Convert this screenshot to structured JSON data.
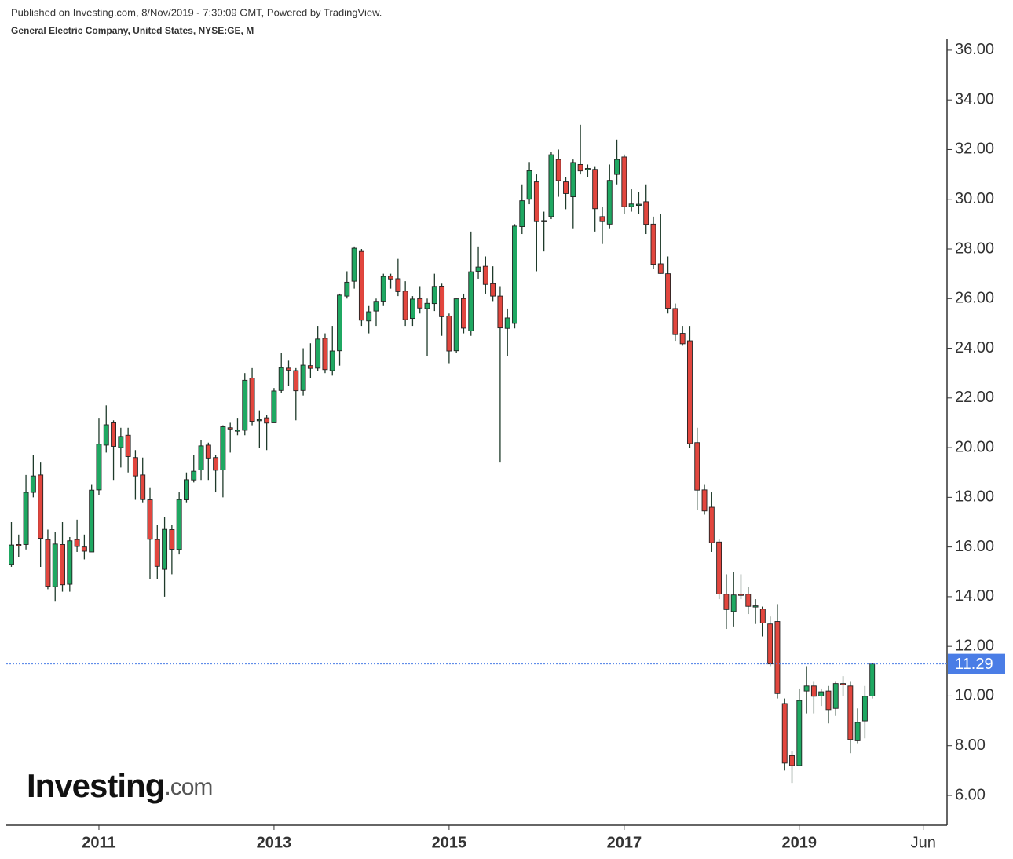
{
  "chart_data": {
    "type": "candlestick",
    "header": "Published on Investing.com, 8/Nov/2019 - 7:30:09 GMT, Powered by TradingView.",
    "title": "General Electric Company, United States, NYSE:GE, M",
    "watermark": "Investing",
    "watermark_suffix": ".com",
    "up_color": "#1fa862",
    "down_color": "#e2463e",
    "last_line_color": "#4a7de6",
    "x": [
      "2010-01",
      "2010-02",
      "2010-03",
      "2010-04",
      "2010-05",
      "2010-06",
      "2010-07",
      "2010-08",
      "2010-09",
      "2010-10",
      "2010-11",
      "2010-12",
      "2011-01",
      "2011-02",
      "2011-03",
      "2011-04",
      "2011-05",
      "2011-06",
      "2011-07",
      "2011-08",
      "2011-09",
      "2011-10",
      "2011-11",
      "2011-12",
      "2012-01",
      "2012-02",
      "2012-03",
      "2012-04",
      "2012-05",
      "2012-06",
      "2012-07",
      "2012-08",
      "2012-09",
      "2012-10",
      "2012-11",
      "2012-12",
      "2013-01",
      "2013-02",
      "2013-03",
      "2013-04",
      "2013-05",
      "2013-06",
      "2013-07",
      "2013-08",
      "2013-09",
      "2013-10",
      "2013-11",
      "2013-12",
      "2014-01",
      "2014-02",
      "2014-03",
      "2014-04",
      "2014-05",
      "2014-06",
      "2014-07",
      "2014-08",
      "2014-09",
      "2014-10",
      "2014-11",
      "2014-12",
      "2015-01",
      "2015-02",
      "2015-03",
      "2015-04",
      "2015-05",
      "2015-06",
      "2015-07",
      "2015-08",
      "2015-09",
      "2015-10",
      "2015-11",
      "2015-12",
      "2016-01",
      "2016-02",
      "2016-03",
      "2016-04",
      "2016-05",
      "2016-06",
      "2016-07",
      "2016-08",
      "2016-09",
      "2016-10",
      "2016-11",
      "2016-12",
      "2017-01",
      "2017-02",
      "2017-03",
      "2017-04",
      "2017-05",
      "2017-06",
      "2017-07",
      "2017-08",
      "2017-09",
      "2017-10",
      "2017-11",
      "2017-12",
      "2018-01",
      "2018-02",
      "2018-03",
      "2018-04",
      "2018-05",
      "2018-06",
      "2018-07",
      "2018-08",
      "2018-09",
      "2018-10",
      "2018-11",
      "2018-12",
      "2019-01",
      "2019-02",
      "2019-03",
      "2019-04",
      "2019-05",
      "2019-06",
      "2019-07",
      "2019-08",
      "2019-09",
      "2019-10",
      "2019-11"
    ],
    "open": [
      15.3,
      16.1,
      16.1,
      18.2,
      18.9,
      16.3,
      14.4,
      16.1,
      14.5,
      16.3,
      16.0,
      15.8,
      18.3,
      20.1,
      21.0,
      20.0,
      20.5,
      19.6,
      18.9,
      17.9,
      16.3,
      15.1,
      16.7,
      15.9,
      17.9,
      18.7,
      19.1,
      20.1,
      19.6,
      19.1,
      20.8,
      20.7,
      20.7,
      22.8,
      21.1,
      21.2,
      21.0,
      22.3,
      23.2,
      23.1,
      22.3,
      23.3,
      23.2,
      24.4,
      23.1,
      23.9,
      26.1,
      26.7,
      27.9,
      25.1,
      25.5,
      25.9,
      26.9,
      26.8,
      26.3,
      25.2,
      26.0,
      25.6,
      25.8,
      26.5,
      25.3,
      23.9,
      26.0,
      24.7,
      27.1,
      27.3,
      26.6,
      26.1,
      24.8,
      25.0,
      28.9,
      30.0,
      30.7,
      29.1,
      29.3,
      31.6,
      30.7,
      30.1,
      31.4,
      31.2,
      31.2,
      29.3,
      29.0,
      31.0,
      31.7,
      29.7,
      29.8,
      29.9,
      29.0,
      27.4,
      27.0,
      25.6,
      24.6,
      24.3,
      20.2,
      18.3,
      17.6,
      16.2,
      14.1,
      13.4,
      14.1,
      14.1,
      13.6,
      13.5,
      12.9,
      13.0,
      9.7,
      7.6,
      7.2,
      10.2,
      10.4,
      10.0,
      10.2,
      9.5,
      10.5,
      10.4,
      8.2,
      9.0,
      10.0
    ],
    "high": [
      17.0,
      16.5,
      18.9,
      19.7,
      19.4,
      16.7,
      16.6,
      17.0,
      16.4,
      17.1,
      16.5,
      18.5,
      21.2,
      21.7,
      21.1,
      20.8,
      20.8,
      19.9,
      19.6,
      18.4,
      16.9,
      17.2,
      16.9,
      18.2,
      19.0,
      19.7,
      20.3,
      20.2,
      19.7,
      20.9,
      21.0,
      21.2,
      23.0,
      23.2,
      21.5,
      21.3,
      22.4,
      23.8,
      23.5,
      23.2,
      24.0,
      24.2,
      24.9,
      24.6,
      24.9,
      26.2,
      27.1,
      28.1,
      28.0,
      25.7,
      26.0,
      27.0,
      27.0,
      27.6,
      26.7,
      26.1,
      26.5,
      26.0,
      27.0,
      26.6,
      25.4,
      26.0,
      26.2,
      28.7,
      28.1,
      27.7,
      27.3,
      26.5,
      25.6,
      29.0,
      30.6,
      31.5,
      31.0,
      29.5,
      31.9,
      32.0,
      30.9,
      31.6,
      33.0,
      31.4,
      31.3,
      29.7,
      31.4,
      32.4,
      31.8,
      30.4,
      30.3,
      30.6,
      29.3,
      29.4,
      27.7,
      25.8,
      24.9,
      24.9,
      20.8,
      18.5,
      18.2,
      16.3,
      14.9,
      15.0,
      14.9,
      14.4,
      13.9,
      13.6,
      13.2,
      13.7,
      9.9,
      7.8,
      10.3,
      11.2,
      10.6,
      10.3,
      10.4,
      10.6,
      10.8,
      10.6,
      9.5,
      10.4,
      11.3
    ],
    "low": [
      15.2,
      15.6,
      15.9,
      18.0,
      15.2,
      14.3,
      13.8,
      14.2,
      14.2,
      15.8,
      15.5,
      15.8,
      18.1,
      19.8,
      18.7,
      19.2,
      19.0,
      17.9,
      17.8,
      14.7,
      14.7,
      14.0,
      14.9,
      15.7,
      17.8,
      18.6,
      18.7,
      18.7,
      18.2,
      18.0,
      19.8,
      20.5,
      20.5,
      20.9,
      20.0,
      19.9,
      21.0,
      22.2,
      22.5,
      21.1,
      22.1,
      22.8,
      23.1,
      23.0,
      22.9,
      23.3,
      26.0,
      26.4,
      24.9,
      24.6,
      24.9,
      25.7,
      26.4,
      26.1,
      24.9,
      24.9,
      25.4,
      23.7,
      25.5,
      24.5,
      23.4,
      23.8,
      24.6,
      24.5,
      26.8,
      26.2,
      25.9,
      19.4,
      23.7,
      24.8,
      28.6,
      29.8,
      27.1,
      27.9,
      29.2,
      30.1,
      29.6,
      28.8,
      31.0,
      30.9,
      28.7,
      28.2,
      28.8,
      30.6,
      29.4,
      29.5,
      29.4,
      28.6,
      27.2,
      27.0,
      25.4,
      24.3,
      24.1,
      20.0,
      17.5,
      17.3,
      15.8,
      13.9,
      12.7,
      12.8,
      13.9,
      13.3,
      12.9,
      12.4,
      11.2,
      9.9,
      7.0,
      6.5,
      7.2,
      9.3,
      9.3,
      9.6,
      8.9,
      9.2,
      10.0,
      7.7,
      8.1,
      8.3,
      9.9
    ],
    "close": [
      16.08,
      16.06,
      18.2,
      18.86,
      16.35,
      14.42,
      16.12,
      14.48,
      16.25,
      16.02,
      15.83,
      18.29,
      20.14,
      20.92,
      20.05,
      20.45,
      19.64,
      18.86,
      17.91,
      16.31,
      15.22,
      16.71,
      15.91,
      17.91,
      18.71,
      19.05,
      20.07,
      19.58,
      19.09,
      20.84,
      20.75,
      20.71,
      22.71,
      21.06,
      21.13,
      20.99,
      22.28,
      23.22,
      23.12,
      22.29,
      23.32,
      23.19,
      24.37,
      23.14,
      23.89,
      26.14,
      26.66,
      28.03,
      25.13,
      25.47,
      25.89,
      26.89,
      26.79,
      26.28,
      25.15,
      25.98,
      25.62,
      25.81,
      26.49,
      25.27,
      23.89,
      25.99,
      24.81,
      27.08,
      27.27,
      26.57,
      26.1,
      24.82,
      25.22,
      28.92,
      29.94,
      31.15,
      29.1,
      29.14,
      31.79,
      30.75,
      30.23,
      31.48,
      31.14,
      31.24,
      29.62,
      29.1,
      30.76,
      31.6,
      29.7,
      29.81,
      29.8,
      28.99,
      27.38,
      27.01,
      25.61,
      24.55,
      24.18,
      20.16,
      18.29,
      17.45,
      16.17,
      14.11,
      13.48,
      14.07,
      14.08,
      13.61,
      13.63,
      12.94,
      11.29,
      10.1,
      7.3,
      7.2,
      9.82,
      10.4,
      9.99,
      10.17,
      9.45,
      10.5,
      10.45,
      8.25,
      8.94,
      9.99,
      11.29
    ],
    "ylim": [
      4.83,
      36.44
    ],
    "yticks": [
      {
        "value": 6,
        "label": "6.00"
      },
      {
        "value": 8,
        "label": "8.00"
      },
      {
        "value": 10,
        "label": "10.00"
      },
      {
        "value": 12,
        "label": "12.00"
      },
      {
        "value": 14,
        "label": "14.00"
      },
      {
        "value": 16,
        "label": "16.00"
      },
      {
        "value": 18,
        "label": "18.00"
      },
      {
        "value": 20,
        "label": "20.00"
      },
      {
        "value": 22,
        "label": "22.00"
      },
      {
        "value": 24,
        "label": "24.00"
      },
      {
        "value": 26,
        "label": "26.00"
      },
      {
        "value": 28,
        "label": "28.00"
      },
      {
        "value": 30,
        "label": "30.00"
      },
      {
        "value": 32,
        "label": "32.00"
      },
      {
        "value": 34,
        "label": "34.00"
      },
      {
        "value": 36,
        "label": "36.00"
      }
    ],
    "xlim": [
      "2009-12",
      "2020-09"
    ],
    "xticks": [
      {
        "value": "2011-01",
        "label": "2011"
      },
      {
        "value": "2013-01",
        "label": "2013"
      },
      {
        "value": "2015-01",
        "label": "2015"
      },
      {
        "value": "2017-01",
        "label": "2017"
      },
      {
        "value": "2019-01",
        "label": "2019"
      },
      {
        "value": "2020-06",
        "label": "Jun"
      }
    ]
  }
}
